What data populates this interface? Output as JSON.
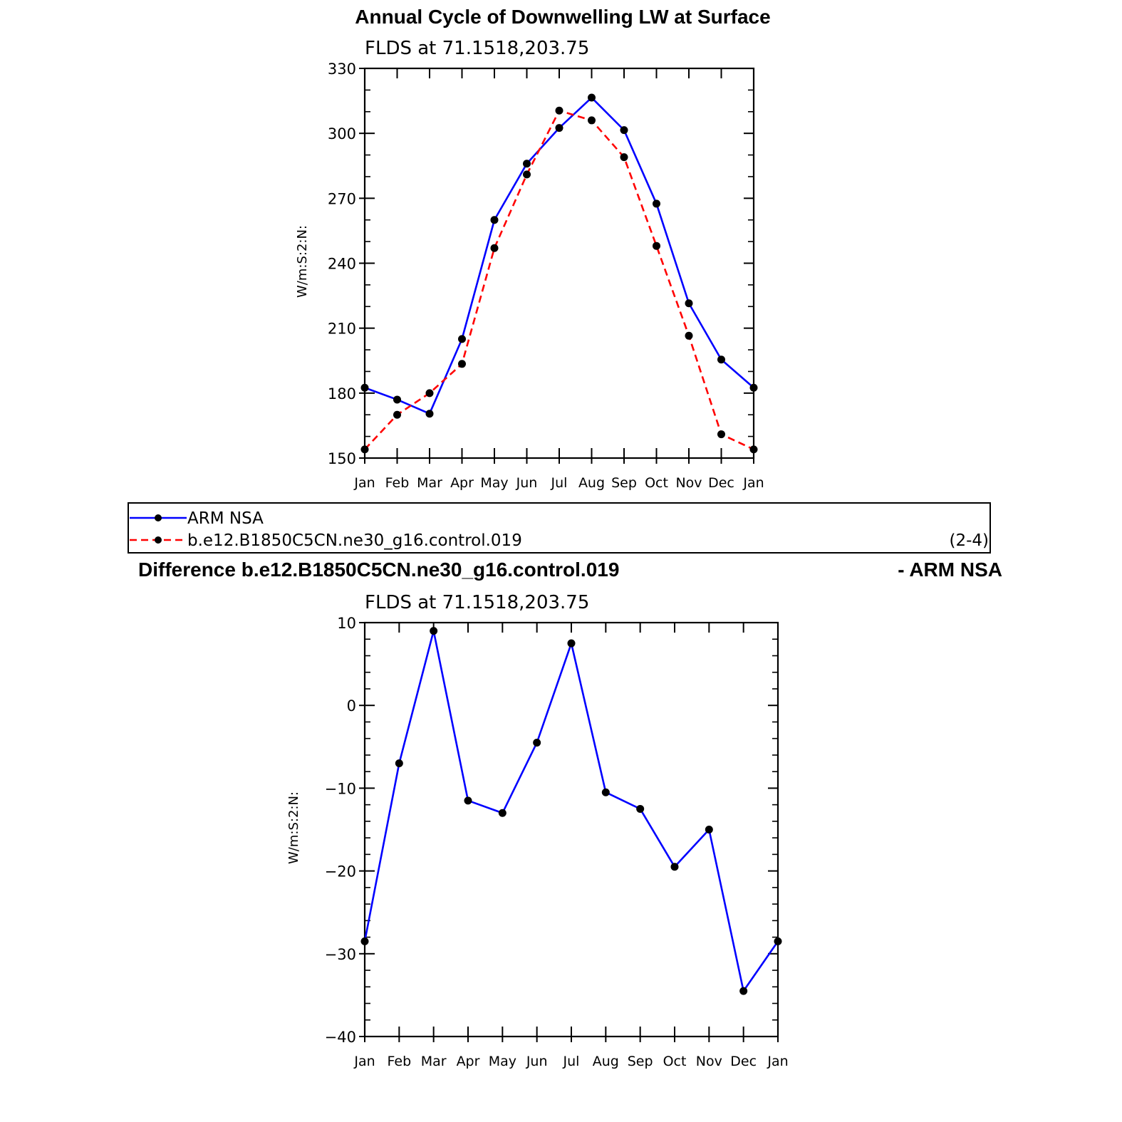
{
  "chart_data": [
    {
      "type": "line",
      "title": "Annual Cycle of Downwelling LW at Surface",
      "subtitle": "FLDS  at  71.1518,203.75",
      "ylabel": "W/m:S:2:N:",
      "xlabel": "",
      "ylim": [
        150,
        330
      ],
      "yticks": [
        "150",
        "180",
        "210",
        "240",
        "270",
        "300",
        "330"
      ],
      "categories": [
        "Jan",
        "Feb",
        "Mar",
        "Apr",
        "May",
        "Jun",
        "Jul",
        "Aug",
        "Sep",
        "Oct",
        "Nov",
        "Dec",
        "Jan"
      ],
      "series": [
        {
          "name": "ARM NSA",
          "color": "#0000ff",
          "dash": "solid",
          "marker": "filled-circle",
          "values": [
            182.5,
            177,
            170.5,
            205,
            260,
            286,
            302.5,
            316.5,
            301.5,
            267.5,
            221.5,
            195.5,
            182.5
          ]
        },
        {
          "name": "b.e12.B1850C5CN.ne30_g16.control.019",
          "color": "#ff0000",
          "dash": "dashed",
          "marker": "filled-circle",
          "values": [
            154,
            170,
            180,
            193.5,
            247,
            281,
            310.5,
            306,
            289,
            248,
            206.5,
            161,
            154
          ]
        }
      ],
      "legend": {
        "placement": "below",
        "entries": [
          "ARM NSA",
          "b.e12.B1850C5CN.ne30_g16.control.019"
        ],
        "note": "(2-4)"
      },
      "grid": false
    },
    {
      "type": "line",
      "title_left": "Difference b.e12.B1850C5CN.ne30_g16.control.019",
      "title_right": "- ARM NSA",
      "subtitle": "FLDS  at  71.1518,203.75",
      "ylabel": "W/m:S:2:N:",
      "xlabel": "",
      "ylim": [
        -40,
        10
      ],
      "yticks": [
        "−40",
        "−30",
        "−20",
        "−10",
        "0",
        "10"
      ],
      "categories": [
        "Jan",
        "Feb",
        "Mar",
        "Apr",
        "May",
        "Jun",
        "Jul",
        "Aug",
        "Sep",
        "Oct",
        "Nov",
        "Dec",
        "Jan"
      ],
      "series": [
        {
          "color": "#0000ff",
          "dash": "solid",
          "marker": "filled-circle",
          "values": [
            -28.5,
            -7,
            9,
            -11.5,
            -13,
            -4.5,
            7.5,
            -10.5,
            -12.5,
            -19.5,
            -15,
            -34.5,
            -28.5
          ]
        }
      ],
      "grid": false
    }
  ]
}
